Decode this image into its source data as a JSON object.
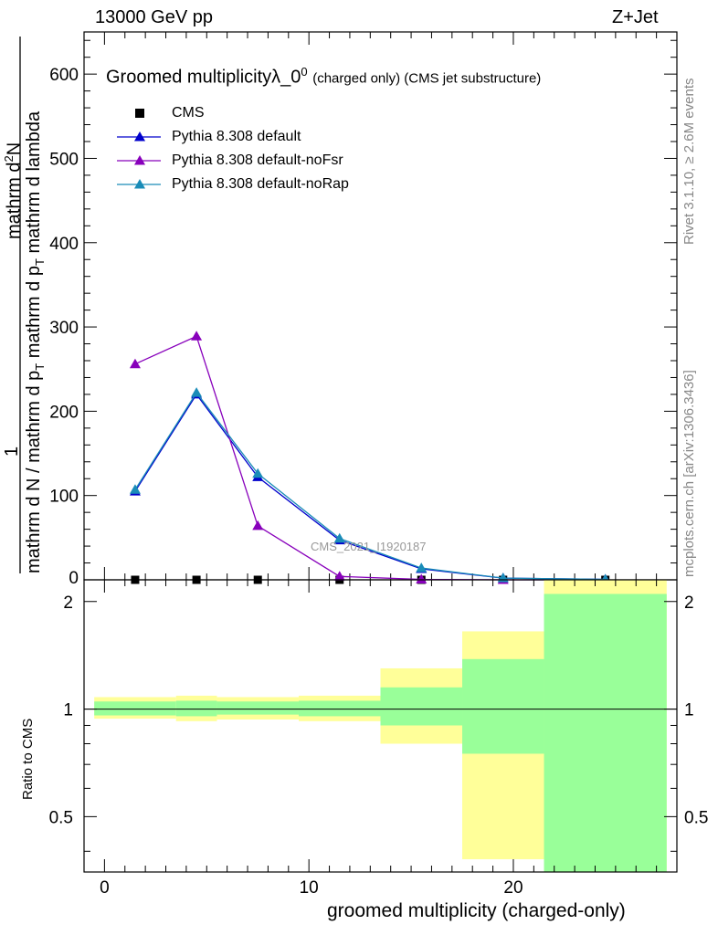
{
  "header": {
    "left": "13000 GeV pp",
    "right": "Z+Jet"
  },
  "side_labels": {
    "rivet": "Rivet 3.1.10, ≥ 2.6M events",
    "mcplots": "mcplots.cern.ch [arXiv:1306.3436]"
  },
  "plot_title": {
    "main": "Groomed multiplicityλ_0",
    "sup": "0",
    "sub": "(charged only) (CMS jet substructure)"
  },
  "watermark": "CMS_2021_I1920187",
  "y_label_main": {
    "num": "mathrm d",
    "numsup": "2",
    "num2": "N",
    "den": "mathrm d p",
    "densub": "T",
    "den2": " mathrm d lambda",
    "prefix_num": "1",
    "prefix_den": "mathrm d N / mathrm d p",
    "prefix_den_sub": "T"
  },
  "y_label_ratio": "Ratio to CMS",
  "x_label": "groomed multiplicity (charged-only)",
  "legend": [
    {
      "label": "CMS",
      "color": "#000000",
      "marker": "square"
    },
    {
      "label": "Pythia 8.308 default",
      "color": "#0000cc",
      "marker": "triangle"
    },
    {
      "label": "Pythia 8.308 default-noFsr",
      "color": "#8800bb",
      "marker": "triangle"
    },
    {
      "label": "Pythia 8.308 default-noRap",
      "color": "#1a8cb8",
      "marker": "triangle"
    }
  ],
  "chart_data": [
    {
      "type": "line",
      "panel": "main",
      "xlim": [
        -1,
        28
      ],
      "ylim": [
        0,
        650
      ],
      "yticks": [
        100,
        200,
        300,
        400,
        500,
        600
      ],
      "x": [
        1.5,
        4.5,
        7.5,
        11.5,
        15.5,
        19.5,
        24.5
      ],
      "series": [
        {
          "name": "CMS",
          "color": "#000000",
          "values": [
            0,
            0,
            0,
            0,
            0,
            0,
            0
          ]
        },
        {
          "name": "Pythia 8.308 default",
          "color": "#0000cc",
          "values": [
            105,
            220,
            122,
            47,
            13,
            2,
            0.5
          ]
        },
        {
          "name": "Pythia 8.308 default-noFsr",
          "color": "#8800bb",
          "values": [
            256,
            289,
            64,
            4,
            0.5,
            0,
            0
          ]
        },
        {
          "name": "Pythia 8.308 default-noRap",
          "color": "#1a8cb8",
          "values": [
            107,
            222,
            126,
            49,
            14,
            2,
            0.5
          ]
        }
      ]
    },
    {
      "type": "area",
      "panel": "ratio",
      "xlim": [
        -1,
        28
      ],
      "ylim": [
        0.35,
        2.3
      ],
      "yticks": [
        0.5,
        1,
        2
      ],
      "xticks": [
        0,
        10,
        20
      ],
      "bin_edges": [
        -0.5,
        3.5,
        5.5,
        9.5,
        13.5,
        17.5,
        21.5,
        27.5
      ],
      "band_outer": {
        "color": "#ffff99",
        "low": [
          0.94,
          0.925,
          0.935,
          0.925,
          0.8,
          0.38,
          0.35
        ],
        "high": [
          1.08,
          1.09,
          1.08,
          1.09,
          1.3,
          1.65,
          2.3
        ]
      },
      "band_inner": {
        "color": "#99ff99",
        "low": [
          0.96,
          0.955,
          0.965,
          0.955,
          0.9,
          0.75,
          0.35
        ],
        "high": [
          1.05,
          1.055,
          1.05,
          1.055,
          1.15,
          1.38,
          2.1
        ]
      },
      "reference": 1
    }
  ]
}
